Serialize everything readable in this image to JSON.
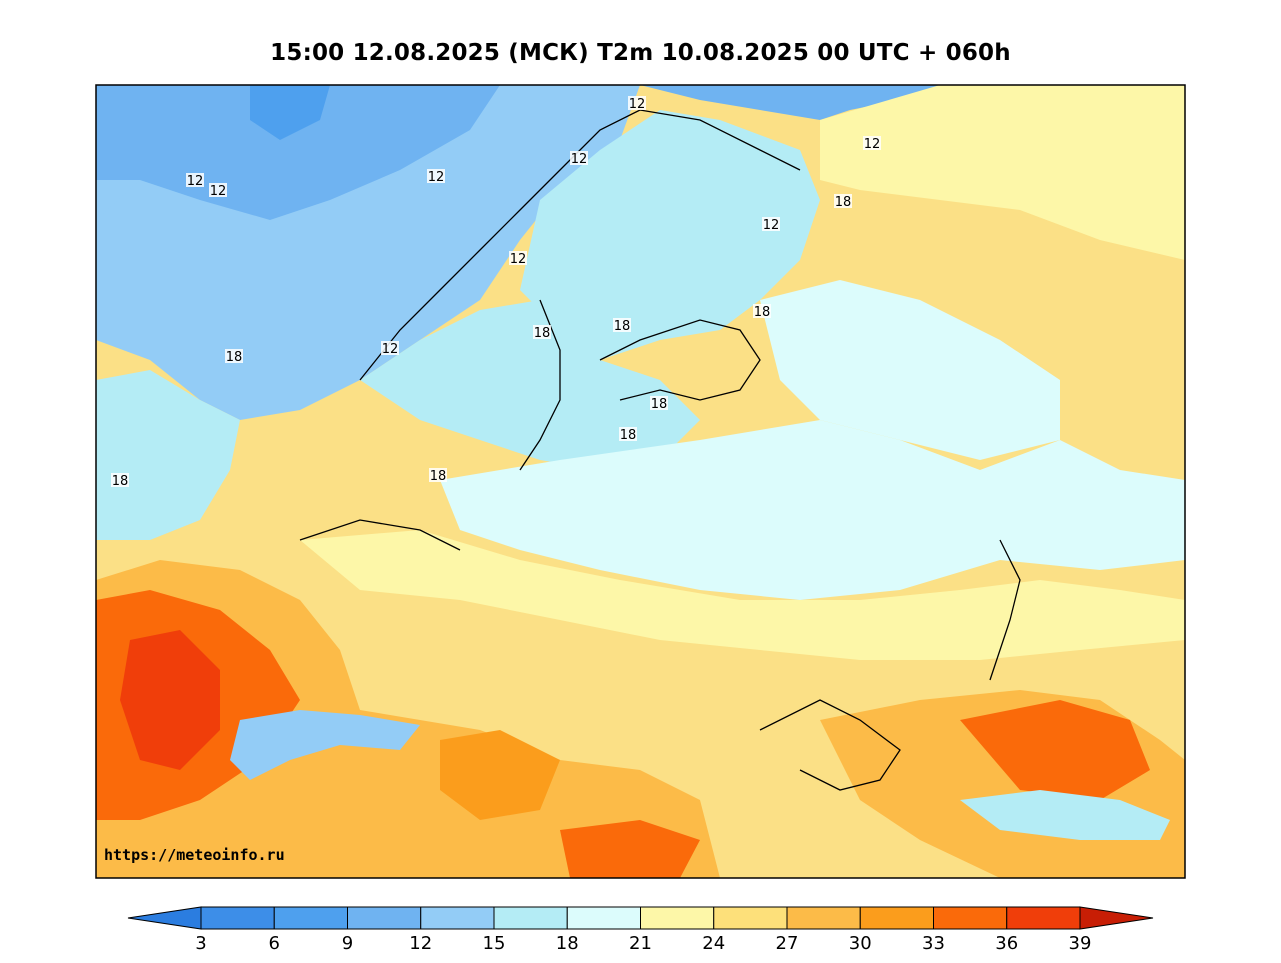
{
  "title": "15:00 12.08.2025 (МСК) T2m 10.08.2025 00 UTC + 060h",
  "watermark": "https://meteoinfo.ru",
  "contour_labels": [
    "12",
    "12",
    "12",
    "12",
    "12",
    "12",
    "12",
    "12",
    "12",
    "18",
    "18",
    "18",
    "18",
    "18",
    "18",
    "18",
    "18",
    "18"
  ],
  "colorbar": {
    "colors": [
      "#2b7de0",
      "#3d8ee8",
      "#4ea0ee",
      "#6fb3f1",
      "#93ccf6",
      "#b4ecf5",
      "#dcfcfc",
      "#fdf7a8",
      "#fde07a",
      "#fcbb48",
      "#fb9d1c",
      "#fa6a0a",
      "#f03e0a",
      "#c81e05"
    ],
    "ticks": [
      "3",
      "6",
      "9",
      "12",
      "15",
      "18",
      "21",
      "24",
      "27",
      "30",
      "33",
      "36",
      "39"
    ]
  }
}
